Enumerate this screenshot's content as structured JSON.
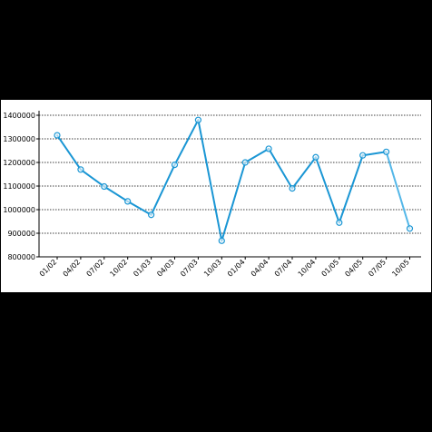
{
  "chart_data": {
    "type": "line",
    "categories": [
      "01/02",
      "04/02",
      "07/02",
      "10/02",
      "01/03",
      "04/03",
      "07/03",
      "10/03",
      "01/04",
      "04/04",
      "07/04",
      "10/04",
      "01/05",
      "04/05",
      "07/05",
      "10/05"
    ],
    "series": [
      {
        "values": [
          1315000,
          1170000,
          1098000,
          1035000,
          978000,
          1190000,
          1380000,
          868000,
          1200000,
          1258000,
          1090000,
          1222000,
          945000,
          1230000,
          1245000,
          920000
        ]
      }
    ],
    "y_tick_labels": [
      "800000",
      "900000",
      "1000000",
      "1100000",
      "1200000",
      "1300000",
      "1400000"
    ],
    "ylim": [
      800000,
      1400000
    ],
    "grid": "horizontal dotted",
    "legend": "none",
    "colors": {
      "line": "#1a96d4",
      "line_last_segment": "#54b7e8",
      "marker": "#1a96d4"
    }
  }
}
